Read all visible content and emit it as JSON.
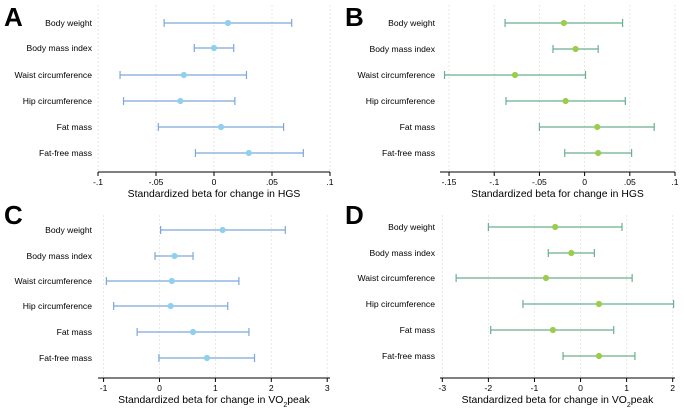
{
  "figure": {
    "categories": [
      "Body weight",
      "Body mass index",
      "Waist circumference",
      "Hip circumference",
      "Fat mass",
      "Fat-free mass"
    ]
  },
  "chart_data": [
    {
      "panel": "A",
      "type": "scatter",
      "xlabel_main": "Standardized beta for change in HGS",
      "xlabel_sub": "",
      "xlabel_tail": "",
      "xlim": [
        -0.1,
        0.1
      ],
      "xticks": [
        -0.1,
        -0.05,
        0,
        0.05,
        0.1
      ],
      "xtick_labels": [
        "-.1",
        "-.05",
        "0",
        ".05",
        ".1"
      ],
      "grid_x": true,
      "color": "#7da7d9",
      "marker_color": "#8fd0f0",
      "categories": [
        "Body weight",
        "Body mass index",
        "Waist circumference",
        "Hip circumference",
        "Fat mass",
        "Fat-free mass"
      ],
      "estimates": [
        0.012,
        0.0,
        -0.026,
        -0.029,
        0.006,
        0.03
      ],
      "ci_low": [
        -0.043,
        -0.017,
        -0.081,
        -0.078,
        -0.048,
        -0.016
      ],
      "ci_high": [
        0.067,
        0.017,
        0.028,
        0.018,
        0.06,
        0.077
      ]
    },
    {
      "panel": "B",
      "type": "scatter",
      "xlabel_main": "Standardized beta for change in HGS",
      "xlabel_sub": "",
      "xlabel_tail": "",
      "xlim": [
        -0.16,
        0.1
      ],
      "xticks": [
        -0.15,
        -0.1,
        -0.05,
        0,
        0.05,
        0.1
      ],
      "xtick_labels": [
        "-.15",
        "-.1",
        "-.05",
        "0",
        ".05",
        ".1"
      ],
      "grid_x": true,
      "color": "#6ab08f",
      "marker_color": "#9ccc4a",
      "categories": [
        "Body weight",
        "Body mass index",
        "Waist circumference",
        "Hip circumference",
        "Fat mass",
        "Fat-free mass"
      ],
      "estimates": [
        -0.023,
        -0.01,
        -0.077,
        -0.021,
        0.014,
        0.015
      ],
      "ci_low": [
        -0.088,
        -0.035,
        -0.155,
        -0.087,
        -0.05,
        -0.022
      ],
      "ci_high": [
        0.042,
        0.015,
        0.001,
        0.045,
        0.077,
        0.052
      ]
    },
    {
      "panel": "C",
      "type": "scatter",
      "xlabel_main": "Standardized beta for change in VO",
      "xlabel_sub": "2",
      "xlabel_tail": "peak",
      "xlim": [
        -1.1,
        3.05
      ],
      "xticks": [
        -1,
        0,
        1,
        2,
        3
      ],
      "xtick_labels": [
        "-1",
        "0",
        "1",
        "2",
        "3"
      ],
      "grid_x": true,
      "color": "#7da7d9",
      "marker_color": "#8fd0f0",
      "categories": [
        "Body weight",
        "Body mass index",
        "Waist circumference",
        "Hip circumference",
        "Fat mass",
        "Fat-free mass"
      ],
      "estimates": [
        1.13,
        0.27,
        0.22,
        0.2,
        0.6,
        0.85
      ],
      "ci_low": [
        0.02,
        -0.08,
        -0.95,
        -0.82,
        -0.4,
        -0.01
      ],
      "ci_high": [
        2.25,
        0.6,
        1.42,
        1.22,
        1.6,
        1.7
      ]
    },
    {
      "panel": "D",
      "type": "scatter",
      "xlabel_main": "Standardized beta for change in VO",
      "xlabel_sub": "2",
      "xlabel_tail": "peak",
      "xlim": [
        -3.05,
        2.05
      ],
      "xticks": [
        -3,
        -2,
        -1,
        0,
        1,
        2
      ],
      "xtick_labels": [
        "-3",
        "-2",
        "-1",
        "0",
        "1",
        "2"
      ],
      "grid_x": true,
      "color": "#6ab08f",
      "marker_color": "#9ccc4a",
      "categories": [
        "Body weight",
        "Body mass index",
        "Waist circumference",
        "Hip circumference",
        "Fat mass",
        "Fat-free mass"
      ],
      "estimates": [
        -0.55,
        -0.2,
        -0.75,
        0.4,
        -0.6,
        0.4
      ],
      "ci_low": [
        -2.0,
        -0.7,
        -2.7,
        -1.25,
        -1.95,
        -0.38
      ],
      "ci_high": [
        0.9,
        0.3,
        1.12,
        2.02,
        0.72,
        1.18
      ]
    }
  ]
}
